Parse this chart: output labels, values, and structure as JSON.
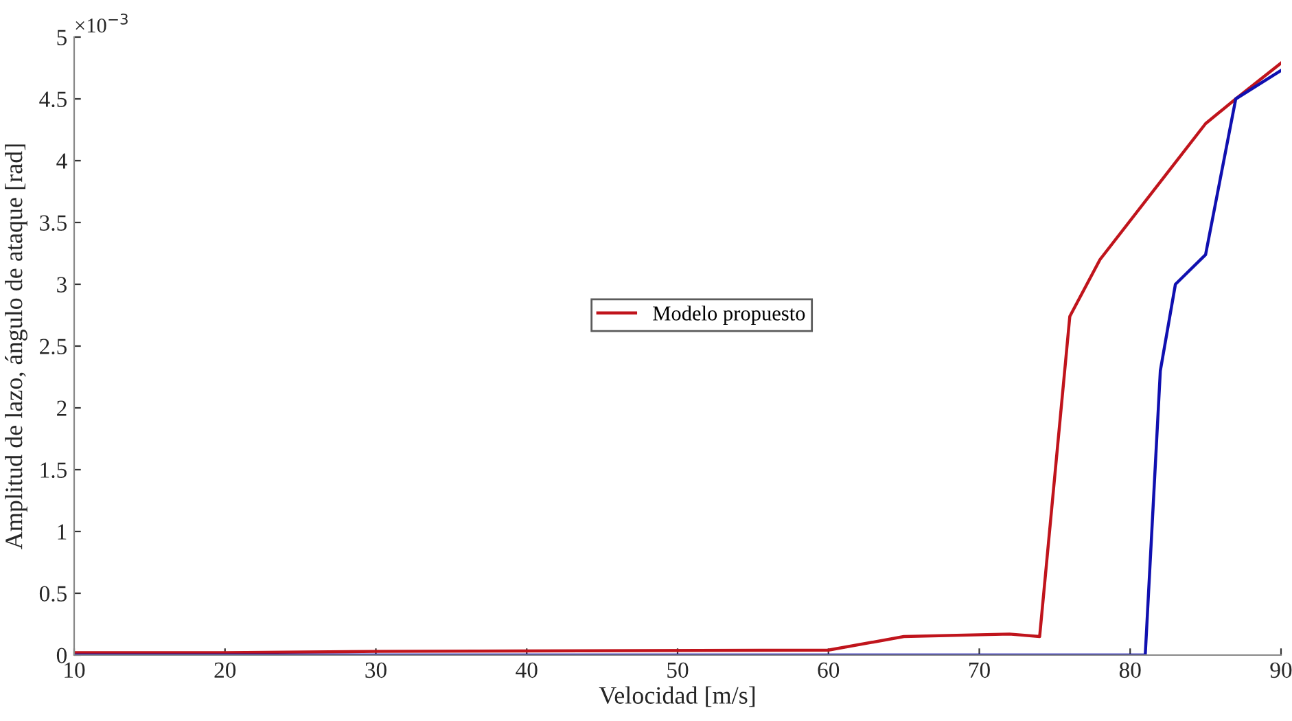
{
  "chart_data": {
    "type": "line",
    "xlabel": "Velocidad [m/s]",
    "ylabel": "Amplitud de lazo, ángulo de ataque [rad]",
    "annotations": [
      "×10$^{−3}$"
    ],
    "series": [
      {
        "name": "Modelo propuesto",
        "color": "#c0141c",
        "x": [
          10,
          20,
          30,
          60,
          65,
          72,
          74,
          76,
          78,
          85,
          87,
          90
        ],
        "values": [
          0.02,
          0.02,
          0.03,
          0.04,
          0.15,
          0.17,
          0.15,
          2.74,
          3.2,
          4.3,
          4.5,
          4.79
        ]
      },
      {
        "color": "#1010b0",
        "x": [
          10,
          81,
          82,
          83,
          85,
          87,
          90
        ],
        "values": [
          0,
          0,
          2.3,
          3.0,
          3.24,
          4.5,
          4.73
        ]
      }
    ],
    "xlim": [
      10,
      90
    ],
    "xticks": [
      10,
      20,
      30,
      40,
      50,
      60,
      70,
      80,
      90
    ],
    "ylim": [
      0,
      5
    ],
    "yticks": [
      0,
      0.5,
      1,
      1.5,
      2,
      2.5,
      3,
      3.5,
      4,
      4.5,
      5
    ],
    "grid": false,
    "legend": "center",
    "line_style": "solid",
    "marker": "none"
  }
}
